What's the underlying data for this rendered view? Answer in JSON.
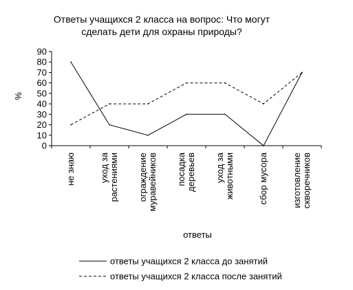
{
  "chart_data": {
    "type": "line",
    "title": [
      "Ответы учащихся 2 класса на вопрос: Что могут",
      "сделать дети для охраны природы?"
    ],
    "ylabel": "%",
    "xlabel": "ответы",
    "ylim": [
      0,
      90
    ],
    "yticks": [
      0,
      10,
      20,
      30,
      40,
      50,
      60,
      70,
      80,
      90
    ],
    "categories": [
      [
        "не знаю"
      ],
      [
        "уход за",
        "растениями"
      ],
      [
        "ограждение",
        "муравейников"
      ],
      [
        "посадка",
        "деревьев"
      ],
      [
        "уход за",
        "животными"
      ],
      [
        "сбор мусора"
      ],
      [
        "изготовление",
        "скворечников"
      ]
    ],
    "series": [
      {
        "name": "ответы учащихся 2 класса до занятий",
        "style": "solid",
        "values": [
          80,
          20,
          10,
          30,
          30,
          0,
          70
        ]
      },
      {
        "name": "ответы учащихся 2 класса после занятий",
        "style": "dashed",
        "values": [
          20,
          40,
          40,
          60,
          60,
          40,
          70
        ]
      }
    ],
    "legend_position": "bottom",
    "grid": false,
    "colors": {
      "line": "#000000",
      "background": "#ffffff"
    }
  }
}
